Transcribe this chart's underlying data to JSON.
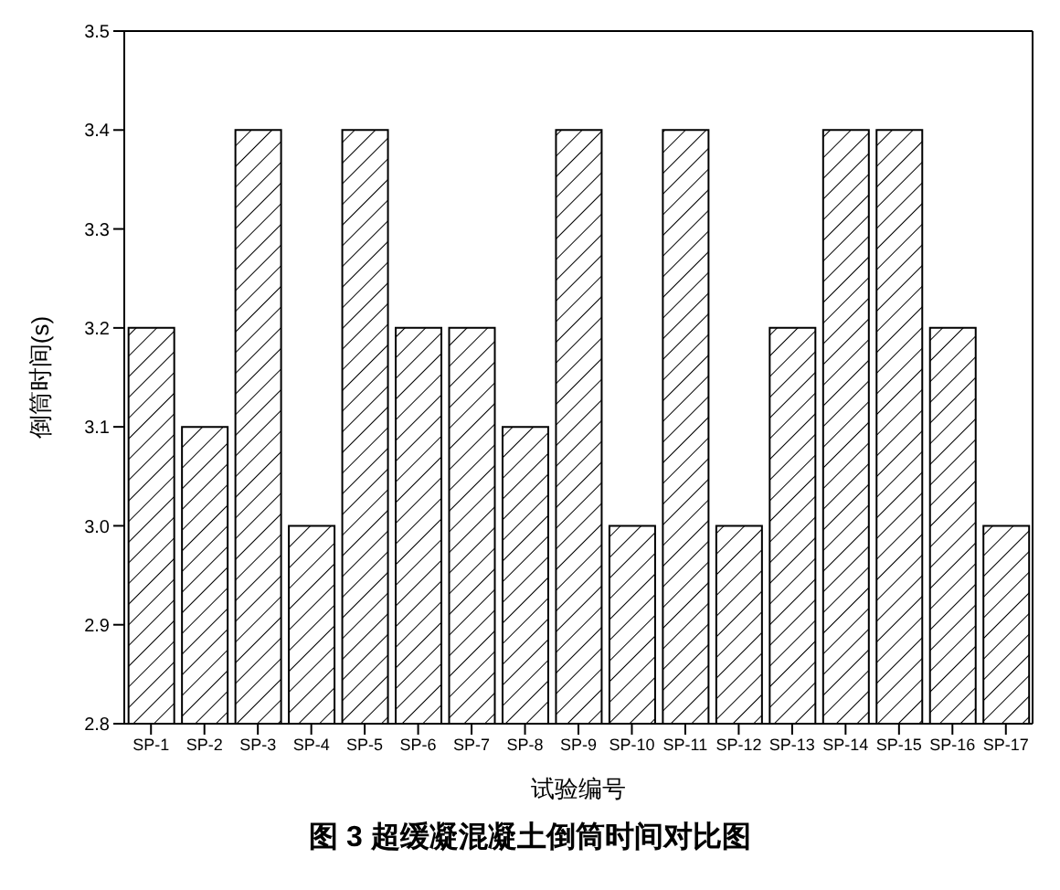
{
  "chart_data": {
    "type": "bar",
    "title": "图 3  超缓凝混凝土倒筒时间对比图",
    "xlabel": "试验编号",
    "ylabel": "倒筒时间(s)",
    "categories": [
      "SP-1",
      "SP-2",
      "SP-3",
      "SP-4",
      "SP-5",
      "SP-6",
      "SP-7",
      "SP-8",
      "SP-9",
      "SP-10",
      "SP-11",
      "SP-12",
      "SP-13",
      "SP-14",
      "SP-15",
      "SP-16",
      "SP-17"
    ],
    "values": [
      3.2,
      3.1,
      3.4,
      3.0,
      3.4,
      3.2,
      3.2,
      3.1,
      3.4,
      3.0,
      3.4,
      3.0,
      3.2,
      3.4,
      3.4,
      3.2,
      3.0
    ],
    "color": "#000000",
    "ylim": [
      2.8,
      3.5
    ],
    "yticks": [
      2.8,
      2.9,
      {
        "value": 3,
        "label": "3.0"
      },
      3.1,
      3.2,
      3.3,
      3.4,
      3.5
    ],
    "grid": false,
    "legend": false
  }
}
